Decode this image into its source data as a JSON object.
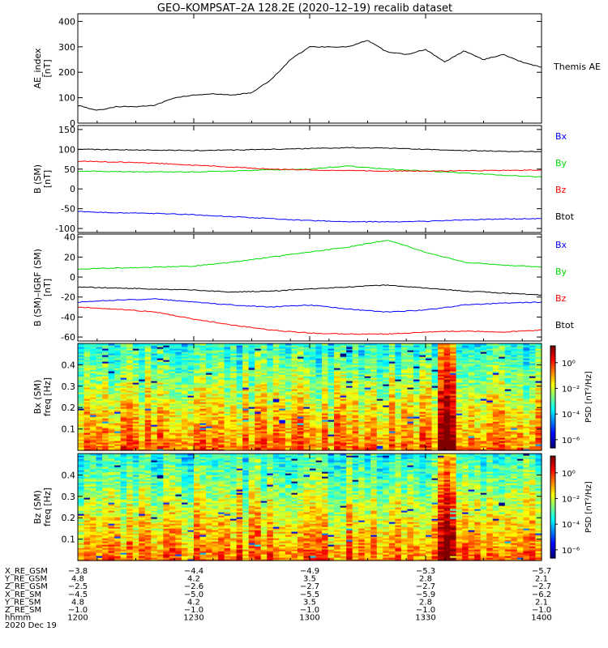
{
  "title": "GEO–KOMPSAT–2A 128.2E (2020–12–19) recalib dataset",
  "colors": {
    "black": "#000000",
    "blue": "#0000ff",
    "green": "#00dd00",
    "red": "#ff0000"
  },
  "chart_data": [
    {
      "type": "line",
      "panel": "ae",
      "ylabel": "AE_index\n[nT]",
      "right_label": "Themis AE",
      "ylim": [
        0,
        430
      ],
      "yticks": [
        0,
        100,
        200,
        300,
        400
      ],
      "x": [
        0,
        5,
        10,
        15,
        20,
        25,
        30,
        35,
        40,
        45,
        50,
        55,
        60,
        65,
        70,
        75,
        80,
        85,
        90,
        95,
        100,
        105,
        110,
        115,
        120
      ],
      "series": [
        {
          "name": "Themis AE",
          "color": "#000000",
          "values": [
            70,
            50,
            65,
            65,
            70,
            100,
            110,
            115,
            110,
            120,
            170,
            250,
            300,
            300,
            300,
            325,
            280,
            270,
            290,
            240,
            285,
            250,
            270,
            240,
            220
          ]
        }
      ]
    },
    {
      "type": "line",
      "panel": "b_sm",
      "ylabel": "B (SM)\n[nT]",
      "ylim": [
        -110,
        160
      ],
      "yticks": [
        -100,
        -50,
        0,
        50,
        100,
        150
      ],
      "x": [
        0,
        10,
        20,
        30,
        40,
        50,
        60,
        70,
        80,
        90,
        100,
        110,
        120
      ],
      "series": [
        {
          "name": "Bx",
          "color": "#0000ff",
          "values": [
            -57,
            -60,
            -62,
            -65,
            -70,
            -75,
            -80,
            -83,
            -83,
            -82,
            -78,
            -76,
            -75
          ]
        },
        {
          "name": "By",
          "color": "#00dd00",
          "values": [
            45,
            44,
            43,
            43,
            45,
            48,
            50,
            58,
            50,
            45,
            40,
            35,
            30
          ]
        },
        {
          "name": "Bz",
          "color": "#ff0000",
          "values": [
            70,
            68,
            65,
            60,
            55,
            50,
            48,
            46,
            45,
            45,
            46,
            47,
            48
          ]
        },
        {
          "name": "Btot",
          "color": "#000000",
          "values": [
            100,
            99,
            98,
            97,
            98,
            100,
            102,
            104,
            103,
            100,
            97,
            95,
            94
          ]
        }
      ]
    },
    {
      "type": "line",
      "panel": "b_sm_igrf",
      "ylabel": "B (SM)–IGRF (SM)\n[nT]",
      "ylim": [
        -64,
        43
      ],
      "yticks": [
        -60,
        -40,
        -20,
        0,
        20,
        40
      ],
      "x": [
        0,
        10,
        20,
        30,
        40,
        50,
        60,
        70,
        80,
        90,
        100,
        110,
        120
      ],
      "series": [
        {
          "name": "Bx",
          "color": "#0000ff",
          "values": [
            -25,
            -23,
            -22,
            -25,
            -28,
            -30,
            -28,
            -32,
            -35,
            -33,
            -28,
            -26,
            -25
          ]
        },
        {
          "name": "By",
          "color": "#00dd00",
          "values": [
            8,
            9,
            10,
            11,
            15,
            20,
            25,
            30,
            37,
            25,
            15,
            12,
            10
          ]
        },
        {
          "name": "Bz",
          "color": "#ff0000",
          "values": [
            -30,
            -32,
            -35,
            -42,
            -48,
            -53,
            -56,
            -57,
            -57,
            -55,
            -54,
            -55,
            -53
          ]
        },
        {
          "name": "Btot",
          "color": "#000000",
          "values": [
            -10,
            -11,
            -12,
            -13,
            -15,
            -14,
            -12,
            -10,
            -8,
            -11,
            -14,
            -16,
            -18
          ]
        }
      ]
    },
    {
      "type": "heatmap",
      "panel": "bx_spec",
      "ylabel": "Bx (SM)\nfreq [Hz]",
      "ylim": [
        0,
        0.5
      ],
      "yticks": [
        0.1,
        0.2,
        0.3,
        0.4
      ],
      "colorbar_label": "PSD [nT²/Hz]",
      "colorbar_ticks": [
        "10⁰",
        "10⁻²",
        "10⁻⁴",
        "10⁻⁶"
      ]
    },
    {
      "type": "heatmap",
      "panel": "bz_spec",
      "ylabel": "Bz (SM)\nfreq [Hz]",
      "ylim": [
        0,
        0.5
      ],
      "yticks": [
        0.1,
        0.2,
        0.3,
        0.4
      ],
      "colorbar_label": "PSD [nT²/Hz]",
      "colorbar_ticks": [
        "10⁰",
        "10⁻²",
        "10⁻⁴",
        "10⁻⁶"
      ]
    }
  ],
  "ephemeris": {
    "row_labels": [
      "X_RE_GSM",
      "Y_RE_GSM",
      "Z_RE_GSM",
      "X_RE_SM",
      "Y_RE_SM",
      "Z_RE_SM",
      "hhmm",
      "2020 Dec 19"
    ],
    "columns": [
      [
        "−3.8",
        "4.8",
        "−2.5",
        "−4.5",
        "4.8",
        "−1.0",
        "1200"
      ],
      [
        "−4.4",
        "4.2",
        "−2.6",
        "−5.0",
        "4.2",
        "−1.0",
        "1230"
      ],
      [
        "−4.9",
        "3.5",
        "−2.7",
        "−5.5",
        "3.5",
        "−1.0",
        "1300"
      ],
      [
        "−5.3",
        "2.8",
        "−2.7",
        "−5.9",
        "2.8",
        "−1.0",
        "1330"
      ],
      [
        "−5.7",
        "2.1",
        "−2.7",
        "−6.2",
        "2.1",
        "−1.0",
        "1400"
      ]
    ]
  }
}
